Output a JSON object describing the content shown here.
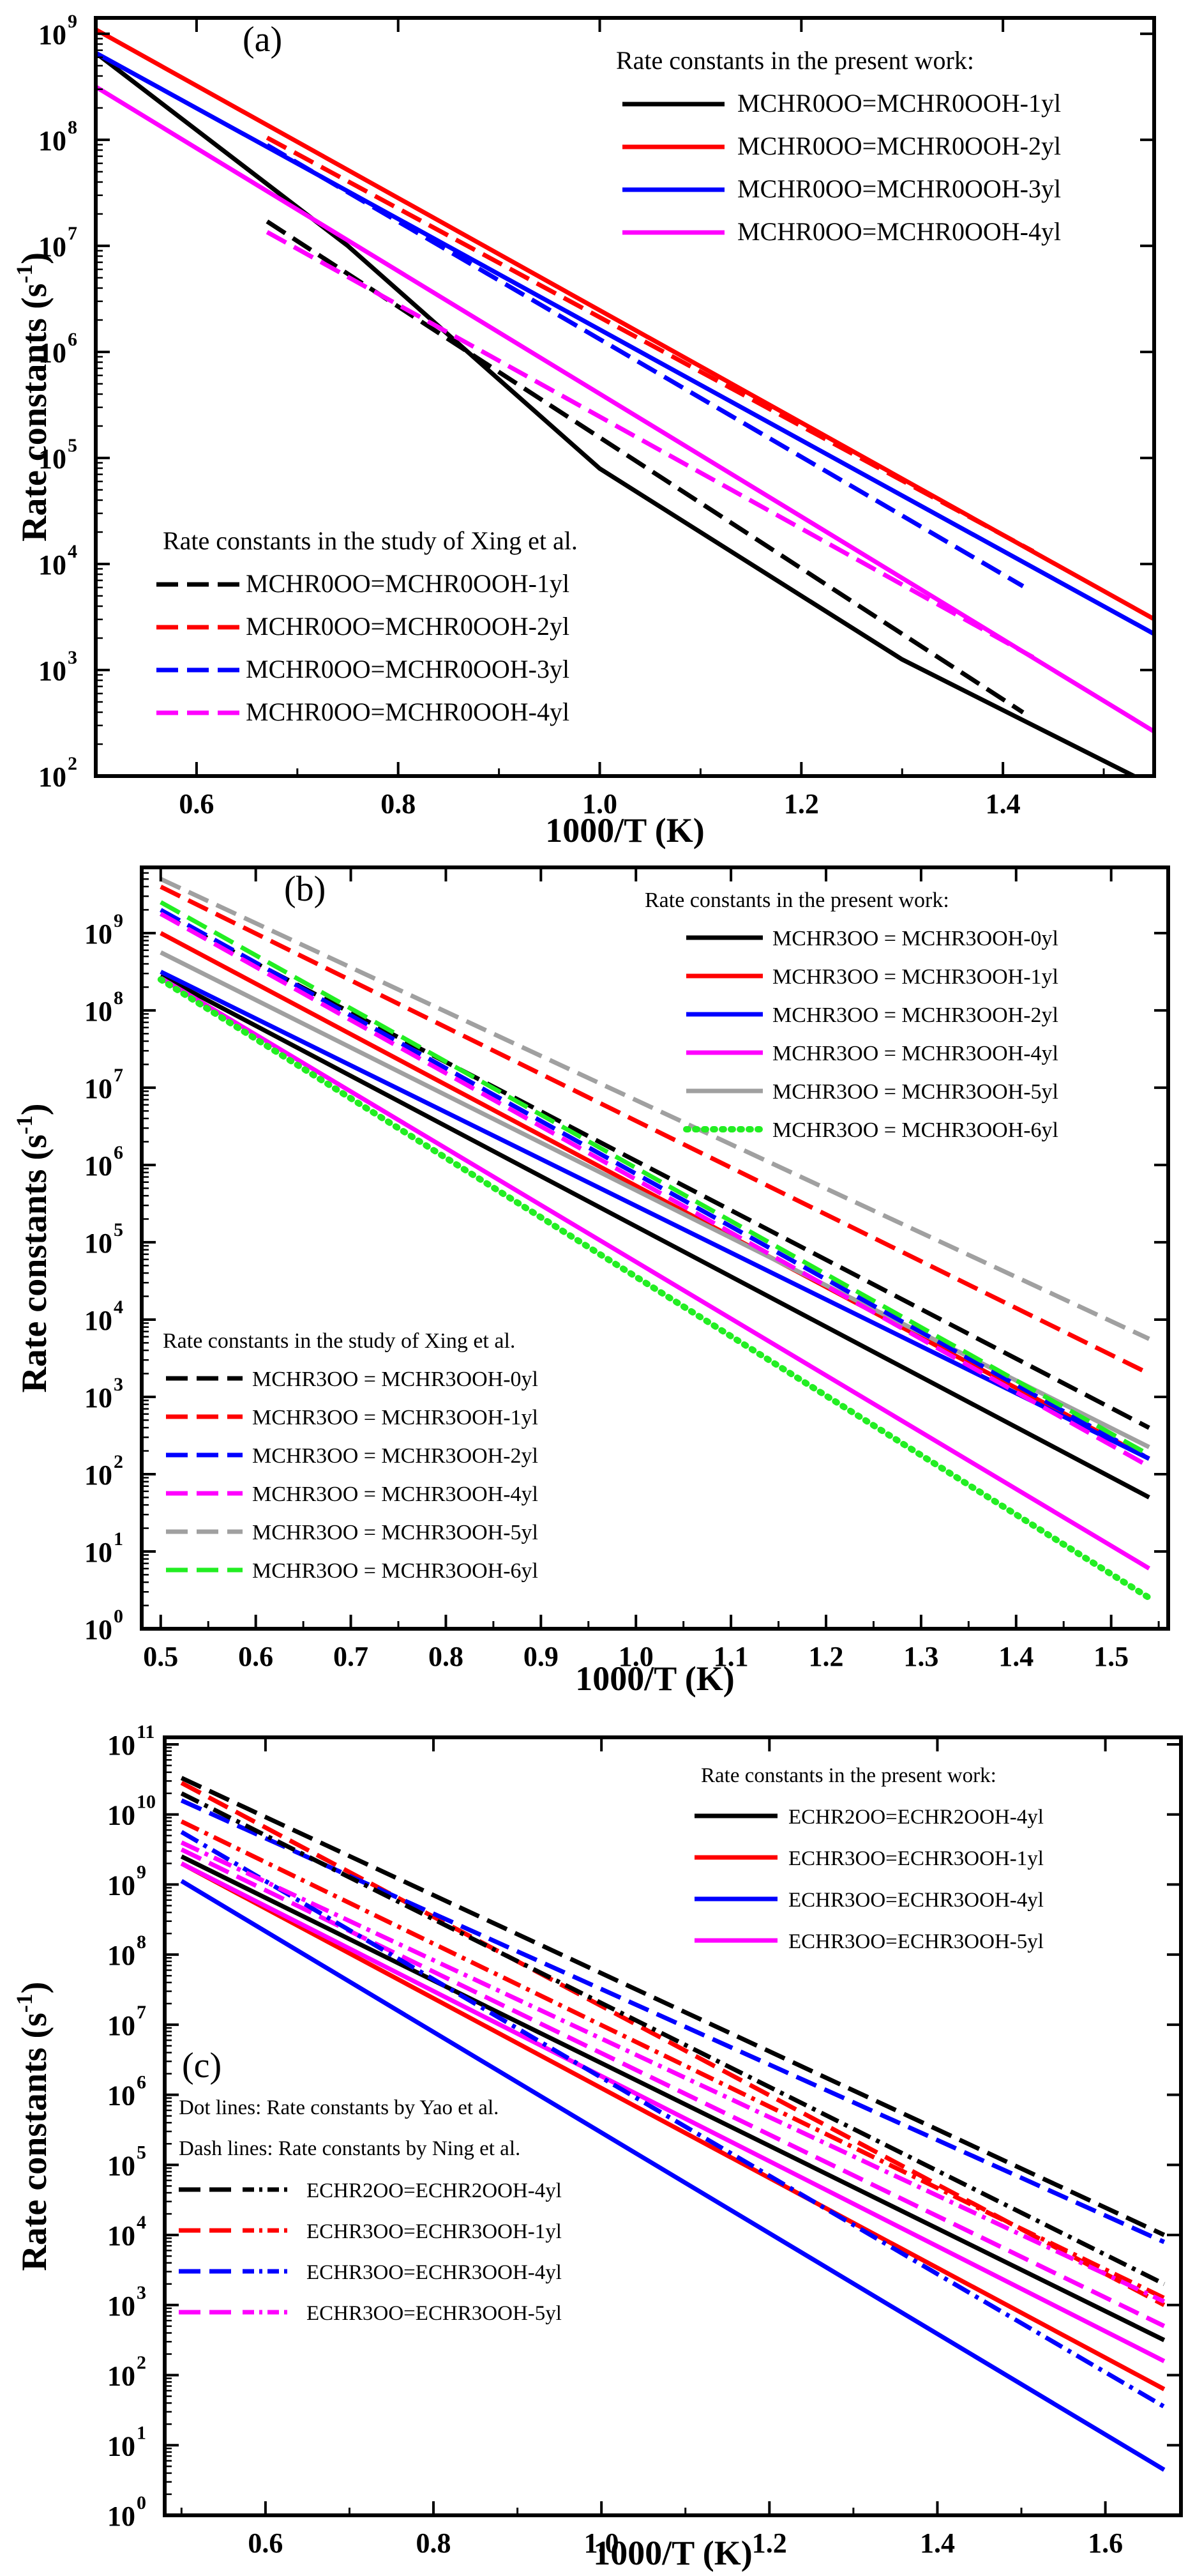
{
  "chart_data": [
    {
      "type": "line",
      "panel_label": "(a)",
      "xlabel": "1000/T (K)",
      "ylabel": "Rate constants (s",
      "ylabel_sup": "-1",
      "ylabel_close": ")",
      "xlim": [
        0.5,
        1.55
      ],
      "ylim_log10": [
        2,
        9.15
      ],
      "x_ticks": [
        0.6,
        0.8,
        1.0,
        1.2,
        1.4
      ],
      "x_tick_labels": [
        "0.6",
        "0.8",
        "1.0",
        "1.2",
        "1.4"
      ],
      "y_tick_exponents": [
        2,
        3,
        4,
        5,
        6,
        7,
        8,
        9
      ],
      "y_tick_base": "10",
      "legend_groups": [
        {
          "title": "Rate constants in the present work:",
          "position": "top-right"
        },
        {
          "title": "Rate constants in the study of Xing et al.",
          "position": "bottom-left"
        }
      ],
      "series": [
        {
          "name": "MCHR0OO=MCHR0OOH-1yl",
          "group": 0,
          "color": "#000000",
          "style": "solid",
          "points": [
            [
              0.5,
              8.82
            ],
            [
              0.75,
              7.0
            ],
            [
              1.0,
              4.9
            ],
            [
              1.3,
              3.1
            ],
            [
              1.53,
              2.0
            ]
          ]
        },
        {
          "name": "MCHR0OO=MCHR0OOH-2yl",
          "group": 0,
          "color": "#ff0000",
          "style": "solid",
          "points": [
            [
              0.5,
              9.04
            ],
            [
              1.55,
              3.48
            ]
          ]
        },
        {
          "name": "MCHR0OO=MCHR0OOH-3yl",
          "group": 0,
          "color": "#0000ff",
          "style": "solid",
          "points": [
            [
              0.5,
              8.82
            ],
            [
              1.55,
              3.34
            ]
          ]
        },
        {
          "name": "MCHR0OO=MCHR0OOH-4yl",
          "group": 0,
          "color": "#ff00ff",
          "style": "solid",
          "points": [
            [
              0.5,
              8.5
            ],
            [
              1.55,
              2.42
            ]
          ]
        },
        {
          "name": "MCHR0OO=MCHR0OOH-1yl",
          "group": 1,
          "color": "#000000",
          "style": "dash",
          "points": [
            [
              0.67,
              7.23
            ],
            [
              1.42,
              2.6
            ]
          ]
        },
        {
          "name": "MCHR0OO=MCHR0OOH-2yl",
          "group": 1,
          "color": "#ff0000",
          "style": "dash",
          "points": [
            [
              0.67,
              8.02
            ],
            [
              1.43,
              4.12
            ]
          ]
        },
        {
          "name": "MCHR0OO=MCHR0OOH-3yl",
          "group": 1,
          "color": "#0000ff",
          "style": "dash",
          "points": [
            [
              0.67,
              7.95
            ],
            [
              1.42,
              3.79
            ]
          ]
        },
        {
          "name": "MCHR0OO=MCHR0OOH-4yl",
          "group": 1,
          "color": "#ff00ff",
          "style": "dash",
          "points": [
            [
              0.67,
              7.13
            ],
            [
              1.43,
              3.12
            ]
          ]
        }
      ]
    },
    {
      "type": "line",
      "panel_label": "(b)",
      "xlabel": "1000/T (K)",
      "ylabel": "Rate constants (s",
      "ylabel_sup": "-1",
      "ylabel_close": ")",
      "xlim": [
        0.48,
        1.56
      ],
      "ylim_log10": [
        0,
        9.85
      ],
      "x_ticks": [
        0.5,
        0.6,
        0.7,
        0.8,
        0.9,
        1.0,
        1.1,
        1.2,
        1.3,
        1.4,
        1.5
      ],
      "x_tick_labels": [
        "0.5",
        "0.6",
        "0.7",
        "0.8",
        "0.9",
        "1.0",
        "1.1",
        "1.2",
        "1.3",
        "1.4",
        "1.5"
      ],
      "y_tick_exponents": [
        0,
        1,
        2,
        3,
        4,
        5,
        6,
        7,
        8,
        9
      ],
      "y_tick_base": "10",
      "legend_groups": [
        {
          "title": "Rate constants in the present work:",
          "position": "top-right"
        },
        {
          "title": "Rate constants in the study of Xing et al.",
          "position": "bottom-left"
        }
      ],
      "series": [
        {
          "name": "MCHR3OO = MCHR3OOH-0yl",
          "group": 0,
          "color": "#000000",
          "style": "solid",
          "points": [
            [
              0.5,
              8.45
            ],
            [
              1.54,
              1.7
            ]
          ]
        },
        {
          "name": "MCHR3OO = MCHR3OOH-1yl",
          "group": 0,
          "color": "#ff0000",
          "style": "solid",
          "points": [
            [
              0.5,
              9.0
            ],
            [
              1.54,
              2.2
            ]
          ]
        },
        {
          "name": "MCHR3OO = MCHR3OOH-2yl",
          "group": 0,
          "color": "#0000ff",
          "style": "solid",
          "points": [
            [
              0.5,
              8.5
            ],
            [
              1.54,
              2.2
            ]
          ]
        },
        {
          "name": "MCHR3OO = MCHR3OOH-4yl",
          "group": 0,
          "color": "#ff00ff",
          "style": "solid",
          "points": [
            [
              0.5,
              8.42
            ],
            [
              1.54,
              0.78
            ]
          ]
        },
        {
          "name": "MCHR3OO = MCHR3OOH-5yl",
          "group": 0,
          "color": "#a0a0a0",
          "style": "solid",
          "points": [
            [
              0.5,
              8.75
            ],
            [
              1.54,
              2.35
            ]
          ]
        },
        {
          "name": "MCHR3OO = MCHR3OOH-6yl",
          "group": 0,
          "color": "#22ee22",
          "style": "dot",
          "points": [
            [
              0.5,
              8.4
            ],
            [
              1.54,
              0.4
            ]
          ]
        },
        {
          "name": "MCHR3OO = MCHR3OOH-0yl",
          "group": 1,
          "color": "#000000",
          "style": "dash",
          "points": [
            [
              0.5,
              9.25
            ],
            [
              1.54,
              2.6
            ]
          ]
        },
        {
          "name": "MCHR3OO = MCHR3OOH-1yl",
          "group": 1,
          "color": "#ff0000",
          "style": "dash",
          "points": [
            [
              0.5,
              9.6
            ],
            [
              1.54,
              3.3
            ]
          ]
        },
        {
          "name": "MCHR3OO = MCHR3OOH-2yl",
          "group": 1,
          "color": "#0000ff",
          "style": "dash",
          "points": [
            [
              0.5,
              9.3
            ],
            [
              1.54,
              2.2
            ]
          ]
        },
        {
          "name": "MCHR3OO = MCHR3OOH-4yl",
          "group": 1,
          "color": "#ff00ff",
          "style": "dash",
          "points": [
            [
              0.5,
              9.25
            ],
            [
              1.54,
              2.1
            ]
          ]
        },
        {
          "name": "MCHR3OO = MCHR3OOH-5yl",
          "group": 1,
          "color": "#a0a0a0",
          "style": "dash",
          "points": [
            [
              0.5,
              9.7
            ],
            [
              1.54,
              3.75
            ]
          ]
        },
        {
          "name": "MCHR3OO = MCHR3OOH-6yl",
          "group": 1,
          "color": "#22ee22",
          "style": "dash",
          "points": [
            [
              0.5,
              9.4
            ],
            [
              1.54,
              2.25
            ]
          ]
        }
      ]
    },
    {
      "type": "line",
      "panel_label": "(c)",
      "xlabel": "1000/T (K)",
      "ylabel": "Rate constants (s",
      "ylabel_sup": "-1",
      "ylabel_close": ")",
      "xlim": [
        0.48,
        1.69
      ],
      "ylim_log10": [
        0,
        11.1
      ],
      "x_ticks": [
        0.6,
        0.8,
        1.0,
        1.2,
        1.4,
        1.6
      ],
      "x_tick_labels": [
        "0.6",
        "0.8",
        "1.0",
        "1.2",
        "1.4",
        "1.6"
      ],
      "y_tick_exponents": [
        0,
        1,
        2,
        3,
        4,
        5,
        6,
        7,
        8,
        9,
        10,
        11
      ],
      "y_tick_base": "10",
      "notes": [
        "Dot lines: Rate constants by Yao et al.",
        "Dash lines: Rate constants by Ning et al."
      ],
      "legend_groups": [
        {
          "title": "Rate constants in the present work:",
          "position": "top-right"
        },
        {
          "title": "",
          "position": "bottom-left"
        }
      ],
      "series": [
        {
          "name": "ECHR2OO=ECHR2OOH-4yl",
          "group": 0,
          "color": "#000000",
          "style": "solid",
          "points": [
            [
              0.5,
              9.4
            ],
            [
              1.67,
              2.5
            ]
          ]
        },
        {
          "name": "ECHR3OO=ECHR3OOH-1yl",
          "group": 0,
          "color": "#ff0000",
          "style": "solid",
          "points": [
            [
              0.5,
              9.3
            ],
            [
              1.67,
              1.8
            ]
          ]
        },
        {
          "name": "ECHR3OO=ECHR3OOH-4yl",
          "group": 0,
          "color": "#0000ff",
          "style": "solid",
          "points": [
            [
              0.5,
              9.05
            ],
            [
              1.67,
              0.65
            ]
          ]
        },
        {
          "name": "ECHR3OO=ECHR3OOH-5yl",
          "group": 0,
          "color": "#ff00ff",
          "style": "solid",
          "points": [
            [
              0.5,
              9.3
            ],
            [
              1.67,
              2.2
            ]
          ]
        },
        {
          "name": "",
          "group": 1,
          "color": "#000000",
          "style": "dash",
          "points": [
            [
              0.5,
              10.52
            ],
            [
              1.67,
              4.0
            ]
          ]
        },
        {
          "name": "",
          "group": 1,
          "color": "#ff0000",
          "style": "dash",
          "points": [
            [
              0.5,
              10.45
            ],
            [
              1.67,
              3.0
            ]
          ]
        },
        {
          "name": "",
          "group": 1,
          "color": "#0000ff",
          "style": "dash",
          "points": [
            [
              0.5,
              10.2
            ],
            [
              1.67,
              3.9
            ]
          ]
        },
        {
          "name": "",
          "group": 1,
          "color": "#ff00ff",
          "style": "dash",
          "points": [
            [
              0.5,
              9.5
            ],
            [
              1.67,
              2.7
            ]
          ]
        },
        {
          "name": "ECHR2OO=ECHR2OOH-4yl",
          "group": 1,
          "color": "#000000",
          "style": "dashdot",
          "points": [
            [
              0.5,
              10.3
            ],
            [
              1.67,
              3.3
            ]
          ]
        },
        {
          "name": "ECHR3OO=ECHR3OOH-1yl",
          "group": 1,
          "color": "#ff0000",
          "style": "dashdot",
          "points": [
            [
              0.5,
              9.9
            ],
            [
              1.67,
              3.1
            ]
          ]
        },
        {
          "name": "ECHR3OO=ECHR3OOH-4yl",
          "group": 1,
          "color": "#0000ff",
          "style": "dashdot",
          "points": [
            [
              0.5,
              9.75
            ],
            [
              1.67,
              1.55
            ]
          ]
        },
        {
          "name": "ECHR3OO=ECHR3OOH-5yl",
          "group": 1,
          "color": "#ff00ff",
          "style": "dashdot",
          "points": [
            [
              0.5,
              9.6
            ],
            [
              1.67,
              3.05
            ]
          ]
        }
      ]
    }
  ]
}
